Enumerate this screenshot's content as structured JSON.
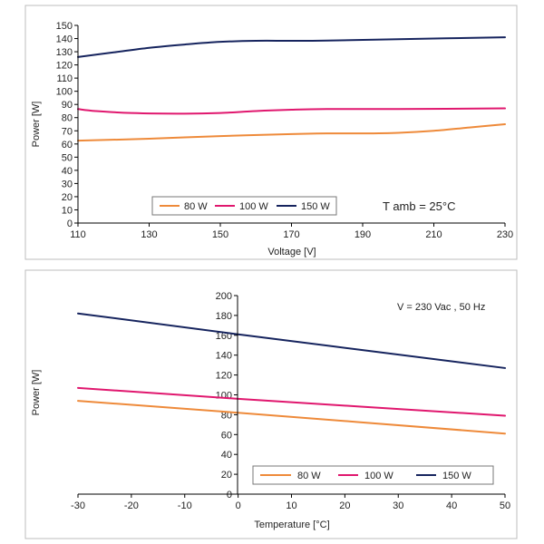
{
  "colors": {
    "s80": "#ee8a3a",
    "s100": "#e0176e",
    "s150": "#16245e",
    "axis": "#000000",
    "frame": "#bdbdbd"
  },
  "chart_data": [
    {
      "type": "line",
      "xlabel": "Voltage [V]",
      "ylabel": "Power [W]",
      "xlim": [
        110,
        230
      ],
      "ylim": [
        0,
        150
      ],
      "xticks": [
        110,
        130,
        150,
        170,
        190,
        210,
        230
      ],
      "yticks": [
        0,
        10,
        20,
        30,
        40,
        50,
        60,
        70,
        80,
        90,
        100,
        110,
        120,
        130,
        140,
        150
      ],
      "grid": false,
      "legend_position": "bottom-center",
      "annotation": "T amb = 25°C",
      "series": [
        {
          "name": "80 W",
          "color_key": "s80",
          "x": [
            110,
            130,
            150,
            170,
            180,
            190,
            200,
            210,
            220,
            230
          ],
          "y": [
            62.5,
            64,
            66,
            67.5,
            68,
            68,
            68.5,
            70,
            72.5,
            75
          ]
        },
        {
          "name": "100 W",
          "color_key": "s100",
          "x": [
            110,
            115,
            125,
            140,
            150,
            160,
            170,
            180,
            200,
            230
          ],
          "y": [
            86.5,
            85,
            83.5,
            83,
            83.5,
            85,
            86,
            86.5,
            86.5,
            87
          ]
        },
        {
          "name": "150 W",
          "color_key": "s150",
          "x": [
            110,
            120,
            130,
            140,
            150,
            160,
            170,
            180,
            200,
            230
          ],
          "y": [
            126,
            129.5,
            133,
            135.5,
            137.5,
            138.3,
            138.3,
            138.5,
            139.5,
            141
          ]
        }
      ]
    },
    {
      "type": "line",
      "xlabel": "Temperature [°C]",
      "ylabel": "Power [W]",
      "xlim": [
        -30,
        50
      ],
      "ylim": [
        0,
        200
      ],
      "xticks": [
        -30,
        -20,
        -10,
        0,
        10,
        20,
        30,
        40,
        50
      ],
      "yticks": [
        0,
        20,
        40,
        60,
        80,
        100,
        120,
        140,
        160,
        180,
        200
      ],
      "grid": false,
      "legend_position": "bottom-right",
      "annotation": "V = 230 Vac , 50 Hz",
      "series": [
        {
          "name": "80 W",
          "color_key": "s80",
          "x": [
            -30,
            0,
            50
          ],
          "y": [
            94,
            82,
            61
          ]
        },
        {
          "name": "100 W",
          "color_key": "s100",
          "x": [
            -30,
            0,
            50
          ],
          "y": [
            107,
            96,
            79
          ]
        },
        {
          "name": "150 W",
          "color_key": "s150",
          "x": [
            -30,
            0,
            50
          ],
          "y": [
            182,
            161,
            127
          ]
        }
      ]
    }
  ]
}
